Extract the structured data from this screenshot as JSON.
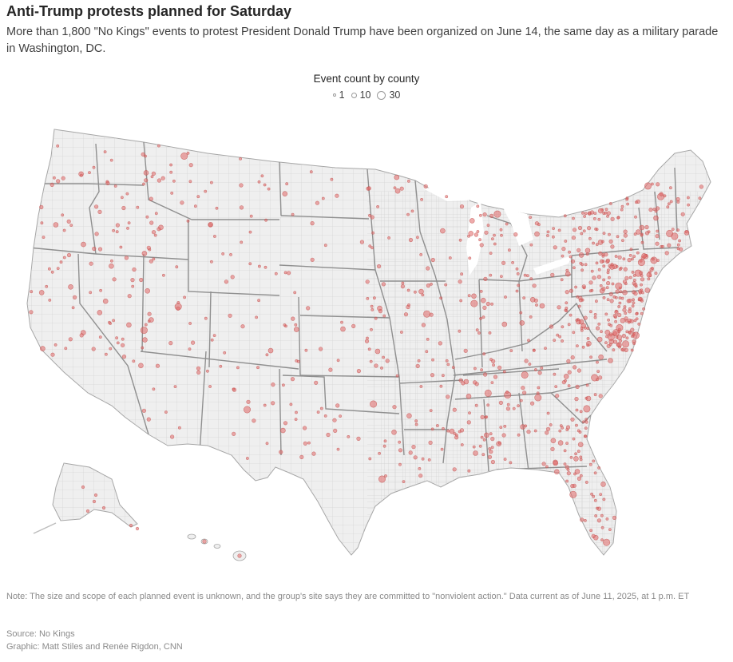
{
  "title": "Anti-Trump protests planned for Saturday",
  "subtitle": "More than 1,800 \"No Kings\" events to protest President Donald Trump have been organized on June 14, the same day as a military parade in Washington, DC.",
  "legend": {
    "title": "Event count by county",
    "items": [
      "1",
      "10",
      "30"
    ]
  },
  "note": "Note: The size and scope of each planned event is unknown, and the group's site says they are committed to \"nonviolent action.\" Data current as of June 11, 2025, at 1 p.m. ET",
  "source": "Source: No Kings",
  "credit": "Graphic: Matt Stiles and Renée Rigdon, CNN",
  "colors": {
    "land": "#efefef",
    "county_border": "#c9c9c9",
    "state_border": "#8f8f8f",
    "dot_fill": "#e06666",
    "dot_stroke": "#c0504d"
  }
}
